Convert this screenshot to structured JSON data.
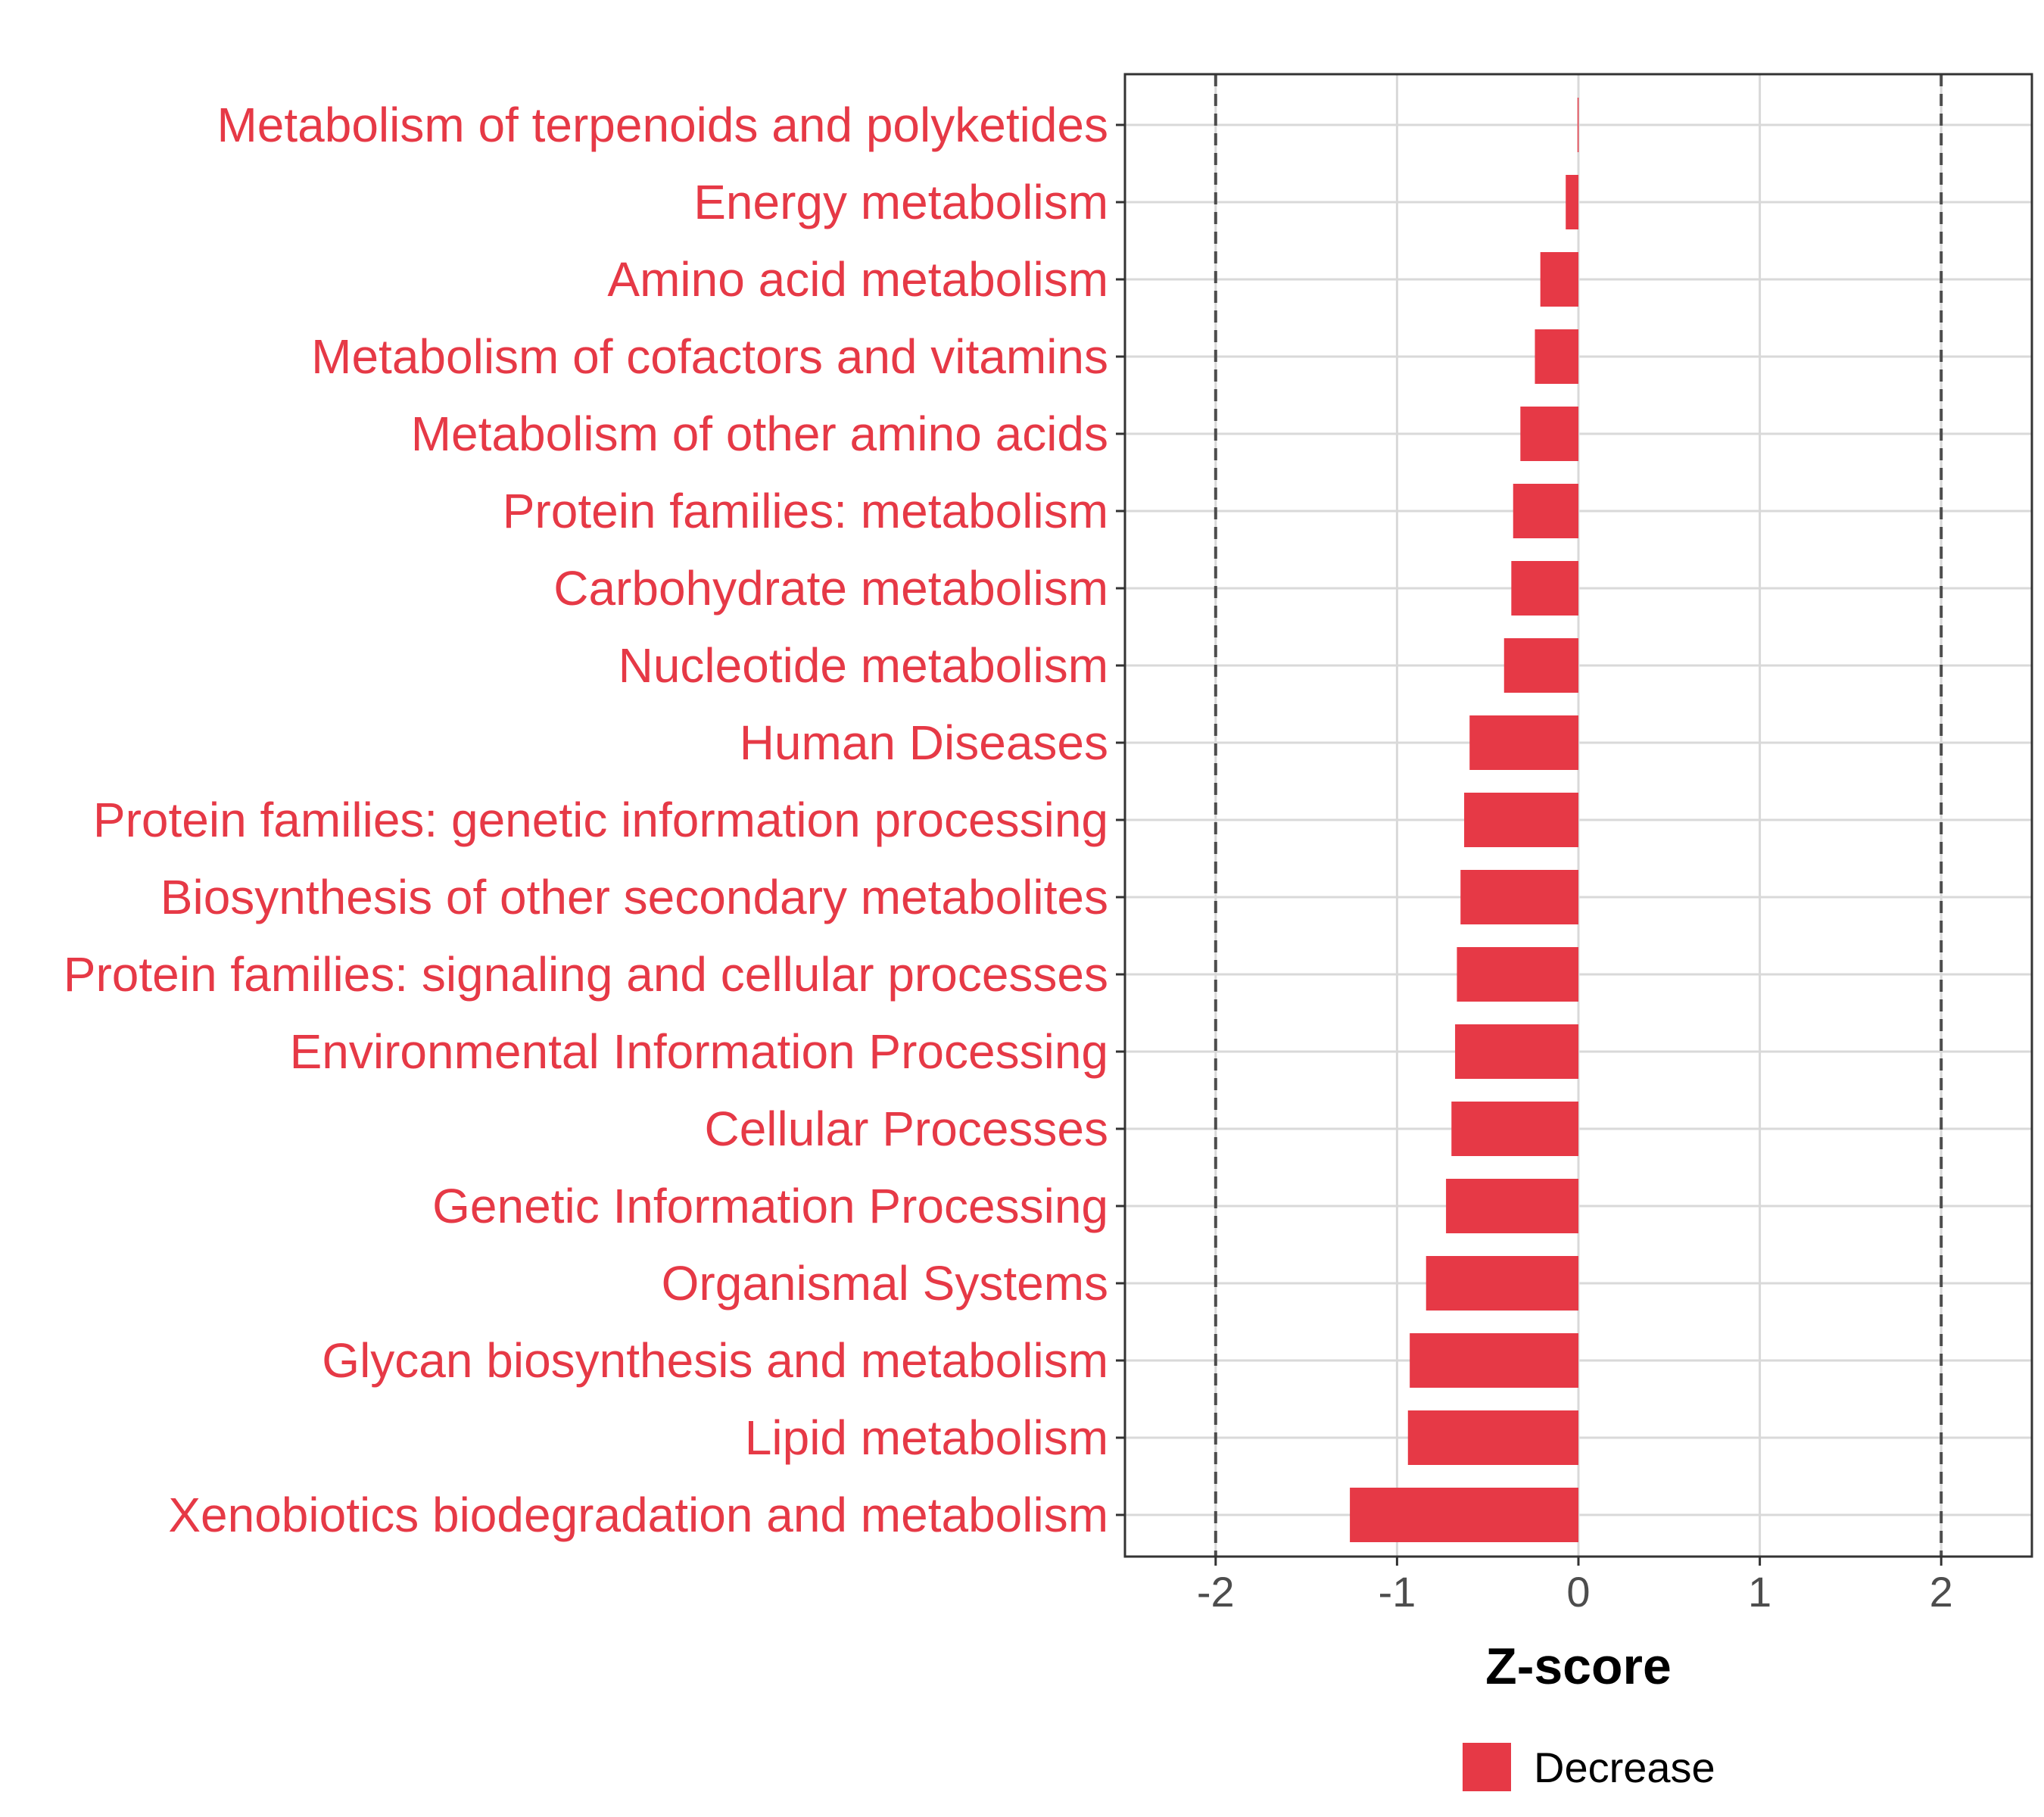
{
  "chart_data": {
    "type": "bar",
    "orientation": "horizontal",
    "categories": [
      "Metabolism of terpenoids and polyketides",
      "Energy metabolism",
      "Amino acid metabolism",
      "Metabolism of cofactors and vitamins",
      "Metabolism of other amino acids",
      "Protein families: metabolism",
      "Carbohydrate metabolism",
      "Nucleotide metabolism",
      "Human Diseases",
      "Protein families: genetic information processing",
      "Biosynthesis of other secondary metabolites",
      "Protein families: signaling and cellular processes",
      "Environmental Information Processing",
      "Cellular Processes",
      "Genetic Information Processing",
      "Organismal Systems",
      "Glycan biosynthesis and metabolism",
      "Lipid metabolism",
      "Xenobiotics biodegradation and metabolism"
    ],
    "values": [
      -0.005,
      -0.07,
      -0.21,
      -0.24,
      -0.32,
      -0.36,
      -0.37,
      -0.41,
      -0.6,
      -0.63,
      -0.65,
      -0.67,
      -0.68,
      -0.7,
      -0.73,
      -0.84,
      -0.93,
      -0.94,
      -1.26
    ],
    "xlabel": "Z-score",
    "xlim": [
      -2.5,
      2.5
    ],
    "xticks": [
      -2,
      -1,
      0,
      1,
      2
    ],
    "reference_lines": [
      -2,
      2
    ],
    "grid": true,
    "series": [
      {
        "name": "Decrease",
        "color": "#e63946"
      }
    ],
    "legend_position": "bottom"
  }
}
